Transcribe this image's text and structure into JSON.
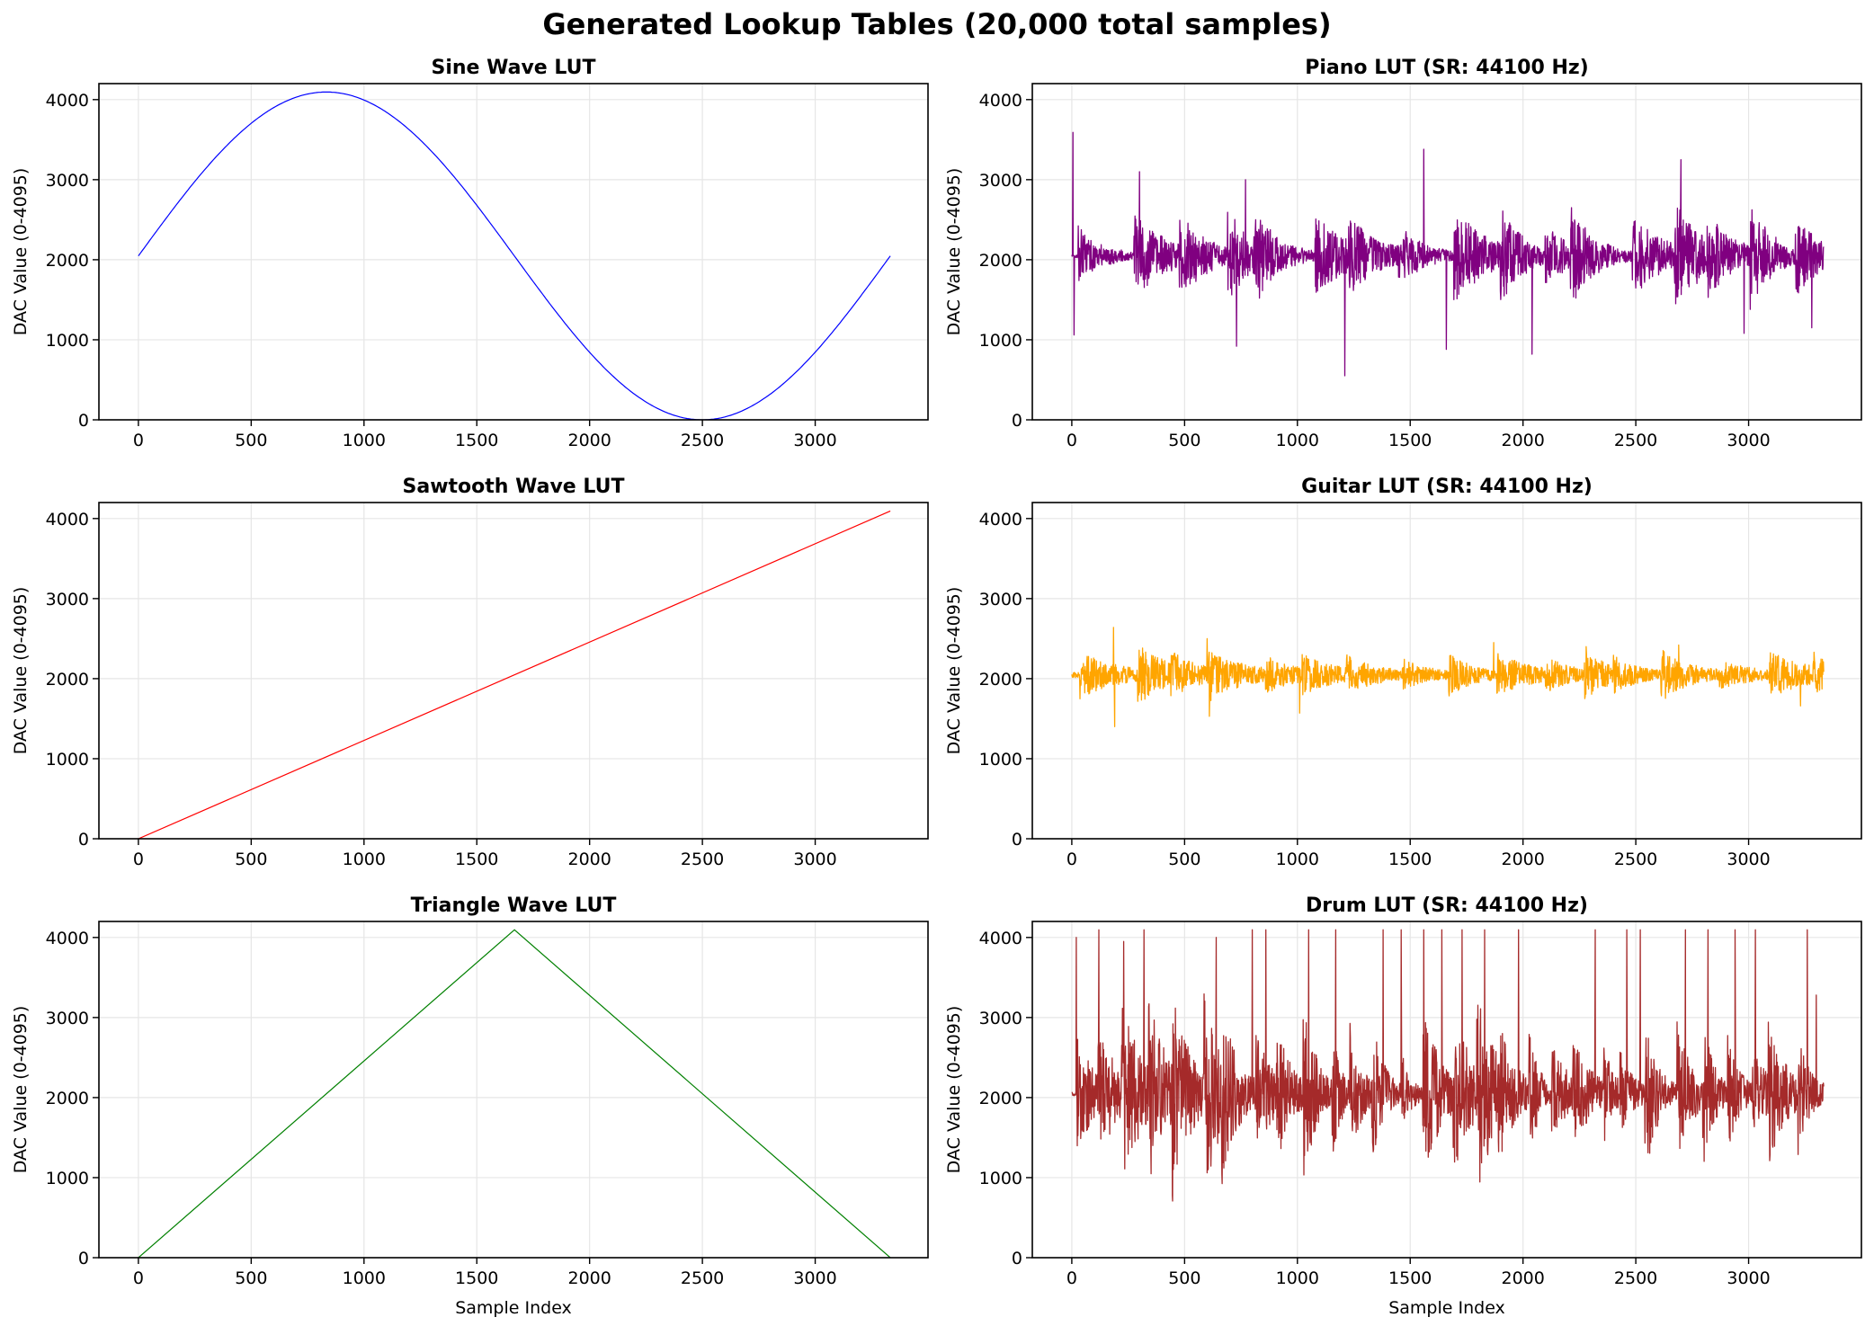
{
  "figure": {
    "title": "Generated Lookup Tables (20,000 total samples)"
  },
  "colors": {
    "sine": "#0000ff",
    "sawtooth": "#ff0000",
    "triangle": "#008000",
    "piano": "#800080",
    "guitar": "#ffa500",
    "drum": "#a52a2a",
    "grid": "#e6e6e6",
    "axis": "#000000"
  },
  "chart_data": [
    {
      "id": "sine",
      "type": "line",
      "title": "Sine Wave LUT",
      "xlabel": "",
      "ylabel": "DAC Value (0-4095)",
      "xlim": [
        -175,
        3500
      ],
      "ylim": [
        0,
        4200
      ],
      "xticks": [
        0,
        500,
        1000,
        1500,
        2000,
        2500,
        3000
      ],
      "yticks": [
        0,
        1000,
        2000,
        3000,
        4000
      ],
      "grid": true,
      "color_key": "sine",
      "x_max": 3333,
      "points": [
        [
          0,
          2048
        ],
        [
          208,
          2831
        ],
        [
          417,
          3496
        ],
        [
          625,
          3940
        ],
        [
          833,
          4095
        ],
        [
          1042,
          3940
        ],
        [
          1250,
          3496
        ],
        [
          1458,
          2831
        ],
        [
          1667,
          2048
        ],
        [
          1875,
          1264
        ],
        [
          2083,
          600
        ],
        [
          2292,
          156
        ],
        [
          2500,
          0
        ],
        [
          2708,
          156
        ],
        [
          2917,
          600
        ],
        [
          3125,
          1264
        ],
        [
          3333,
          2048
        ]
      ]
    },
    {
      "id": "piano",
      "type": "line",
      "title": "Piano LUT (SR: 44100 Hz)",
      "xlabel": "",
      "ylabel": "DAC Value (0-4095)",
      "xlim": [
        -175,
        3500
      ],
      "ylim": [
        0,
        4200
      ],
      "xticks": [
        0,
        500,
        1000,
        1500,
        2000,
        2500,
        3000
      ],
      "yticks": [
        0,
        1000,
        2000,
        3000,
        4000
      ],
      "grid": true,
      "color_key": "piano",
      "x_max": 3333,
      "peaks": [
        [
          5,
          3590
        ],
        [
          10,
          1060
        ],
        [
          300,
          3100
        ],
        [
          730,
          920
        ],
        [
          770,
          3000
        ],
        [
          1210,
          550
        ],
        [
          1560,
          3380
        ],
        [
          1660,
          880
        ],
        [
          2040,
          820
        ],
        [
          2700,
          3250
        ],
        [
          2980,
          1080
        ],
        [
          3280,
          1150
        ]
      ]
    },
    {
      "id": "sawtooth",
      "type": "line",
      "title": "Sawtooth Wave LUT",
      "xlabel": "",
      "ylabel": "DAC Value (0-4095)",
      "xlim": [
        -175,
        3500
      ],
      "ylim": [
        0,
        4200
      ],
      "xticks": [
        0,
        500,
        1000,
        1500,
        2000,
        2500,
        3000
      ],
      "yticks": [
        0,
        1000,
        2000,
        3000,
        4000
      ],
      "grid": true,
      "color_key": "sawtooth",
      "x_max": 3333,
      "points": [
        [
          0,
          0
        ],
        [
          3333,
          4095
        ]
      ]
    },
    {
      "id": "guitar",
      "type": "line",
      "title": "Guitar LUT (SR: 44100 Hz)",
      "xlabel": "",
      "ylabel": "DAC Value (0-4095)",
      "xlim": [
        -175,
        3500
      ],
      "ylim": [
        0,
        4200
      ],
      "xticks": [
        0,
        500,
        1000,
        1500,
        2000,
        2500,
        3000
      ],
      "yticks": [
        0,
        1000,
        2000,
        3000,
        4000
      ],
      "grid": true,
      "color_key": "guitar",
      "x_max": 3333,
      "peaks": [
        [
          185,
          2640
        ],
        [
          190,
          1400
        ],
        [
          600,
          2500
        ],
        [
          610,
          1530
        ],
        [
          1010,
          1570
        ],
        [
          1870,
          2450
        ],
        [
          2280,
          2400
        ],
        [
          2690,
          2420
        ],
        [
          3230,
          1660
        ],
        [
          3290,
          2330
        ]
      ]
    },
    {
      "id": "triangle",
      "type": "line",
      "title": "Triangle Wave LUT",
      "xlabel": "Sample Index",
      "ylabel": "DAC Value (0-4095)",
      "xlim": [
        -175,
        3500
      ],
      "ylim": [
        0,
        4200
      ],
      "xticks": [
        0,
        500,
        1000,
        1500,
        2000,
        2500,
        3000
      ],
      "yticks": [
        0,
        1000,
        2000,
        3000,
        4000
      ],
      "grid": true,
      "color_key": "triangle",
      "x_max": 3333,
      "points": [
        [
          0,
          0
        ],
        [
          1667,
          4095
        ],
        [
          3333,
          0
        ]
      ]
    },
    {
      "id": "drum",
      "type": "line",
      "title": "Drum LUT (SR: 44100 Hz)",
      "xlabel": "Sample Index",
      "ylabel": "DAC Value (0-4095)",
      "xlim": [
        -175,
        3500
      ],
      "ylim": [
        0,
        4200
      ],
      "xticks": [
        0,
        500,
        1000,
        1500,
        2000,
        2500,
        3000
      ],
      "yticks": [
        0,
        1000,
        2000,
        3000,
        4000
      ],
      "grid": true,
      "color_key": "drum",
      "x_max": 3333,
      "peaks": [
        [
          20,
          4000
        ],
        [
          120,
          4095
        ],
        [
          230,
          3950
        ],
        [
          320,
          4095
        ],
        [
          640,
          4000
        ],
        [
          800,
          4095
        ],
        [
          860,
          4095
        ],
        [
          1050,
          4095
        ],
        [
          1170,
          4095
        ],
        [
          1380,
          4095
        ],
        [
          1460,
          4095
        ],
        [
          1560,
          4095
        ],
        [
          1640,
          4095
        ],
        [
          1730,
          4095
        ],
        [
          1830,
          4095
        ],
        [
          1980,
          4095
        ],
        [
          2320,
          4095
        ],
        [
          2460,
          4095
        ],
        [
          2520,
          4095
        ],
        [
          2720,
          4095
        ],
        [
          2820,
          4095
        ],
        [
          2940,
          4095
        ],
        [
          3030,
          4095
        ],
        [
          3260,
          4095
        ],
        [
          3300,
          3280
        ]
      ]
    }
  ]
}
